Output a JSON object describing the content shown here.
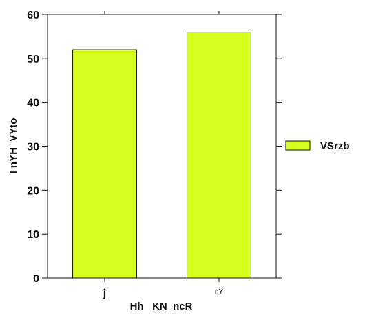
{
  "chart_data": {
    "type": "bar",
    "title": "",
    "xlabel": "Hh   KN  ncR",
    "ylabel": "I nYH  VYto",
    "categories": [
      "j",
      "nY"
    ],
    "series": [
      {
        "name": "VSrzb",
        "values": [
          52,
          56
        ]
      }
    ],
    "ylim": [
      0,
      60
    ],
    "yticks": [
      "0",
      "10",
      "20",
      "30",
      "40",
      "50",
      "60"
    ],
    "grid": false,
    "legend_position": "right",
    "colors": {
      "bar_fill": "#d7ff1f",
      "bar_edge": "#111111",
      "axis": "#111111"
    }
  }
}
